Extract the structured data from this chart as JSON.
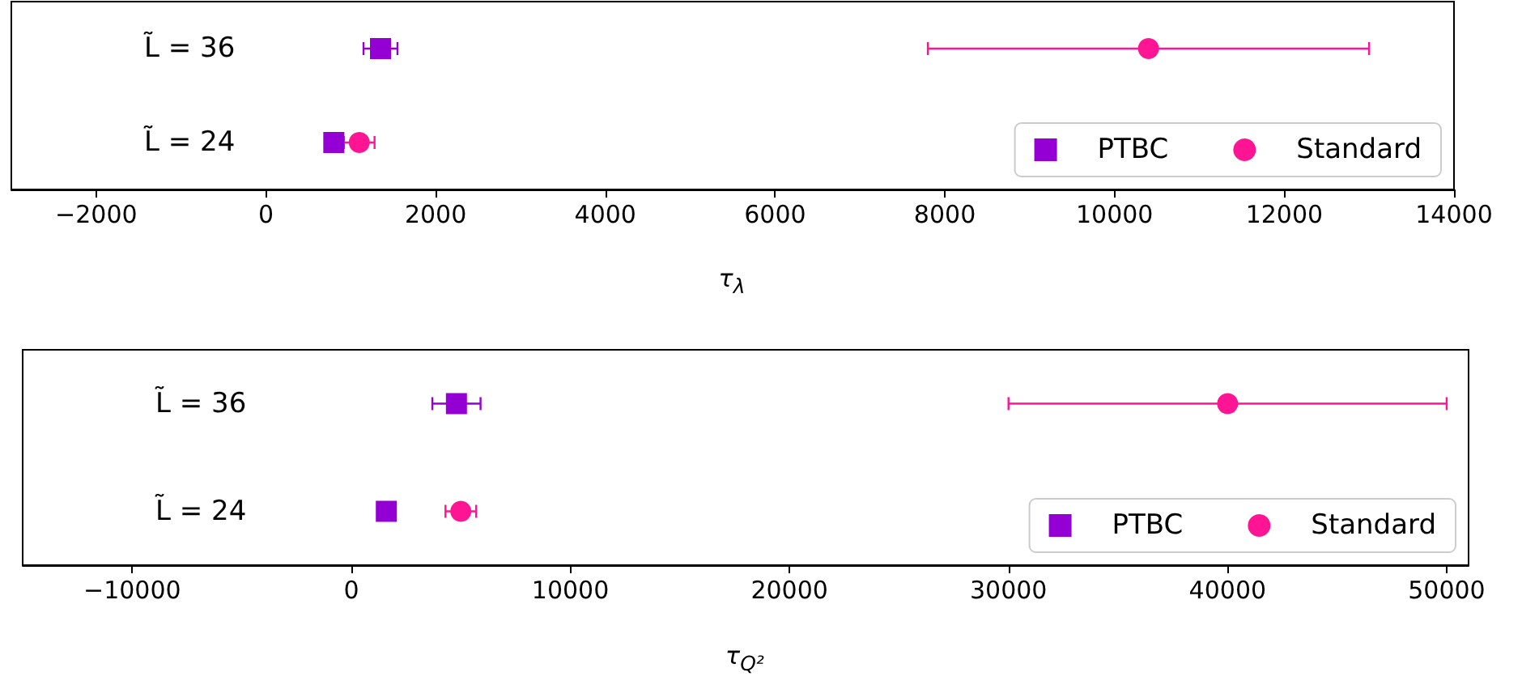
{
  "chart_data": [
    {
      "type": "scatter",
      "orientation": "horizontal",
      "categories": [
        "L̃ = 36",
        "L̃ = 24"
      ],
      "xlabel": "τ$_{λ}$",
      "xlim": [
        -3000,
        14000
      ],
      "xticks": [
        -2000,
        0,
        2000,
        4000,
        6000,
        8000,
        10000,
        12000,
        14000
      ],
      "grid": false,
      "legend": "bottom right",
      "series": [
        {
          "name": "PTBC",
          "color": "#9400d3",
          "marker": "square",
          "values": [
            1350,
            800
          ],
          "errors": [
            200,
            null
          ]
        },
        {
          "name": "Standard",
          "color": "#ff1493",
          "marker": "circle",
          "values": [
            10400,
            1100
          ],
          "errors": [
            2600,
            180
          ]
        }
      ]
    },
    {
      "type": "scatter",
      "orientation": "horizontal",
      "categories": [
        "L̃ = 36",
        "L̃ = 24"
      ],
      "xlabel": "τ$_{Q²}$",
      "xlim": [
        -15000,
        51000
      ],
      "xticks": [
        -10000,
        0,
        10000,
        20000,
        30000,
        40000,
        50000
      ],
      "grid": false,
      "legend": "bottom right",
      "series": [
        {
          "name": "PTBC",
          "color": "#9400d3",
          "marker": "square",
          "values": [
            4800,
            1600
          ],
          "errors": [
            1100,
            null
          ]
        },
        {
          "name": "Standard",
          "color": "#ff1493",
          "marker": "circle",
          "values": [
            40000,
            5000
          ],
          "errors": [
            10000,
            700
          ]
        }
      ]
    }
  ]
}
